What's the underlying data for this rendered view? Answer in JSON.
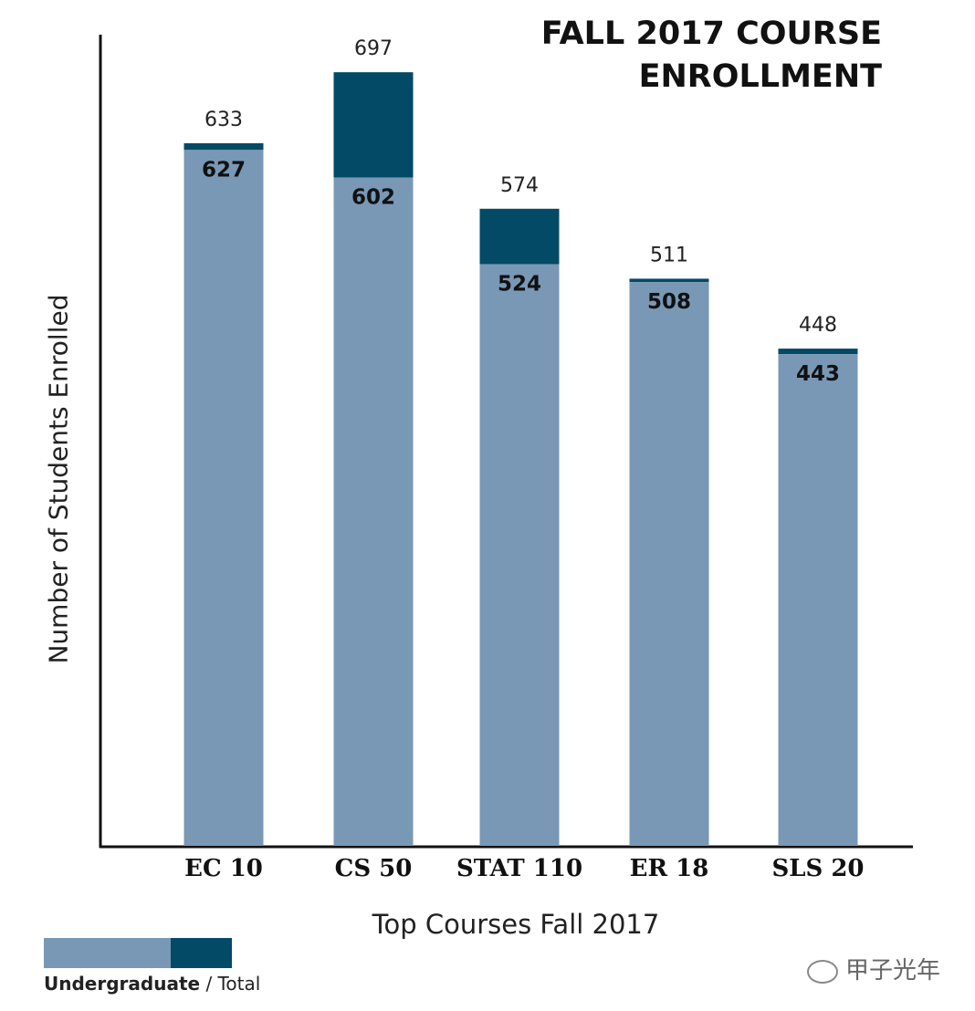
{
  "chart_data": {
    "type": "bar",
    "stacked": true,
    "title_line1": "FALL 2017 COURSE",
    "title_line2": "ENROLLMENT",
    "xlabel": "Top Courses Fall 2017",
    "ylabel": "Number of Students Enrolled",
    "categories": [
      "EC 10",
      "CS 50",
      "STAT 110",
      "ER 18",
      "SLS 20"
    ],
    "undergraduate": [
      627,
      602,
      524,
      508,
      443
    ],
    "total": [
      633,
      697,
      574,
      511,
      448
    ],
    "ylim": [
      0,
      730
    ],
    "grid": false,
    "legend": {
      "position": "bottom-left",
      "undergraduate_label": "Undergraduate",
      "separator": "/",
      "total_label": "Total"
    },
    "colors": {
      "undergraduate": "#7898b6",
      "total": "#034a66"
    }
  },
  "watermark": "甲子光年"
}
